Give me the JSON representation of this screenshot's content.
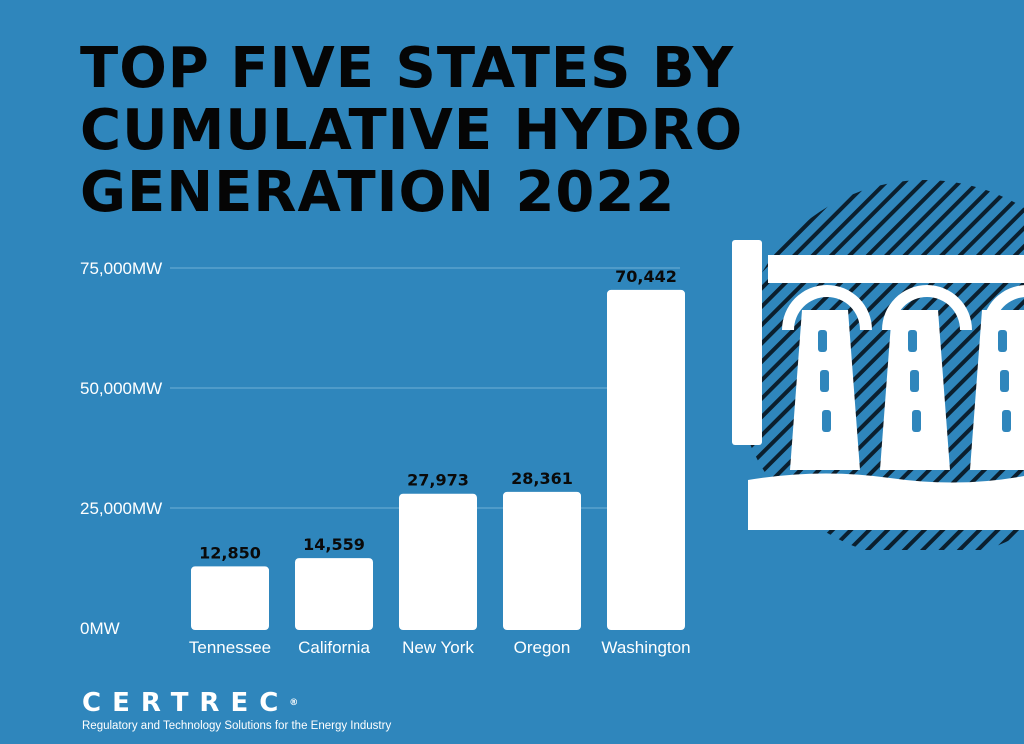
{
  "title_lines": [
    "TOP FIVE STATES BY",
    "CUMULATIVE HYDRO",
    "GENERATION 2022"
  ],
  "chart_data": {
    "type": "bar",
    "title": "TOP FIVE STATES BY CUMULATIVE HYDRO GENERATION 2022",
    "categories": [
      "Tennessee",
      "California",
      "New York",
      "Oregon",
      "Washington"
    ],
    "values": [
      12850,
      14559,
      27973,
      28361,
      70442
    ],
    "value_labels": [
      "12,850",
      "14,559",
      "27,973",
      "28,361",
      "70,442"
    ],
    "yticks": [
      0,
      25000,
      50000,
      75000
    ],
    "ytick_labels": [
      "0MW",
      "25,000MW",
      "50,000MW",
      "75,000MW"
    ],
    "ylim": [
      0,
      75000
    ],
    "grid": true,
    "bar_color": "#ffffff",
    "xlabel": "",
    "ylabel": ""
  },
  "decor": {
    "icon": "hydro-dam-icon"
  },
  "logo": {
    "name": "CERTREC",
    "registered": "®",
    "tagline": "Regulatory and Technology Solutions for the Energy Industry"
  },
  "colors": {
    "background": "#2f86bc",
    "title": "#050505",
    "bars": "#ffffff"
  }
}
